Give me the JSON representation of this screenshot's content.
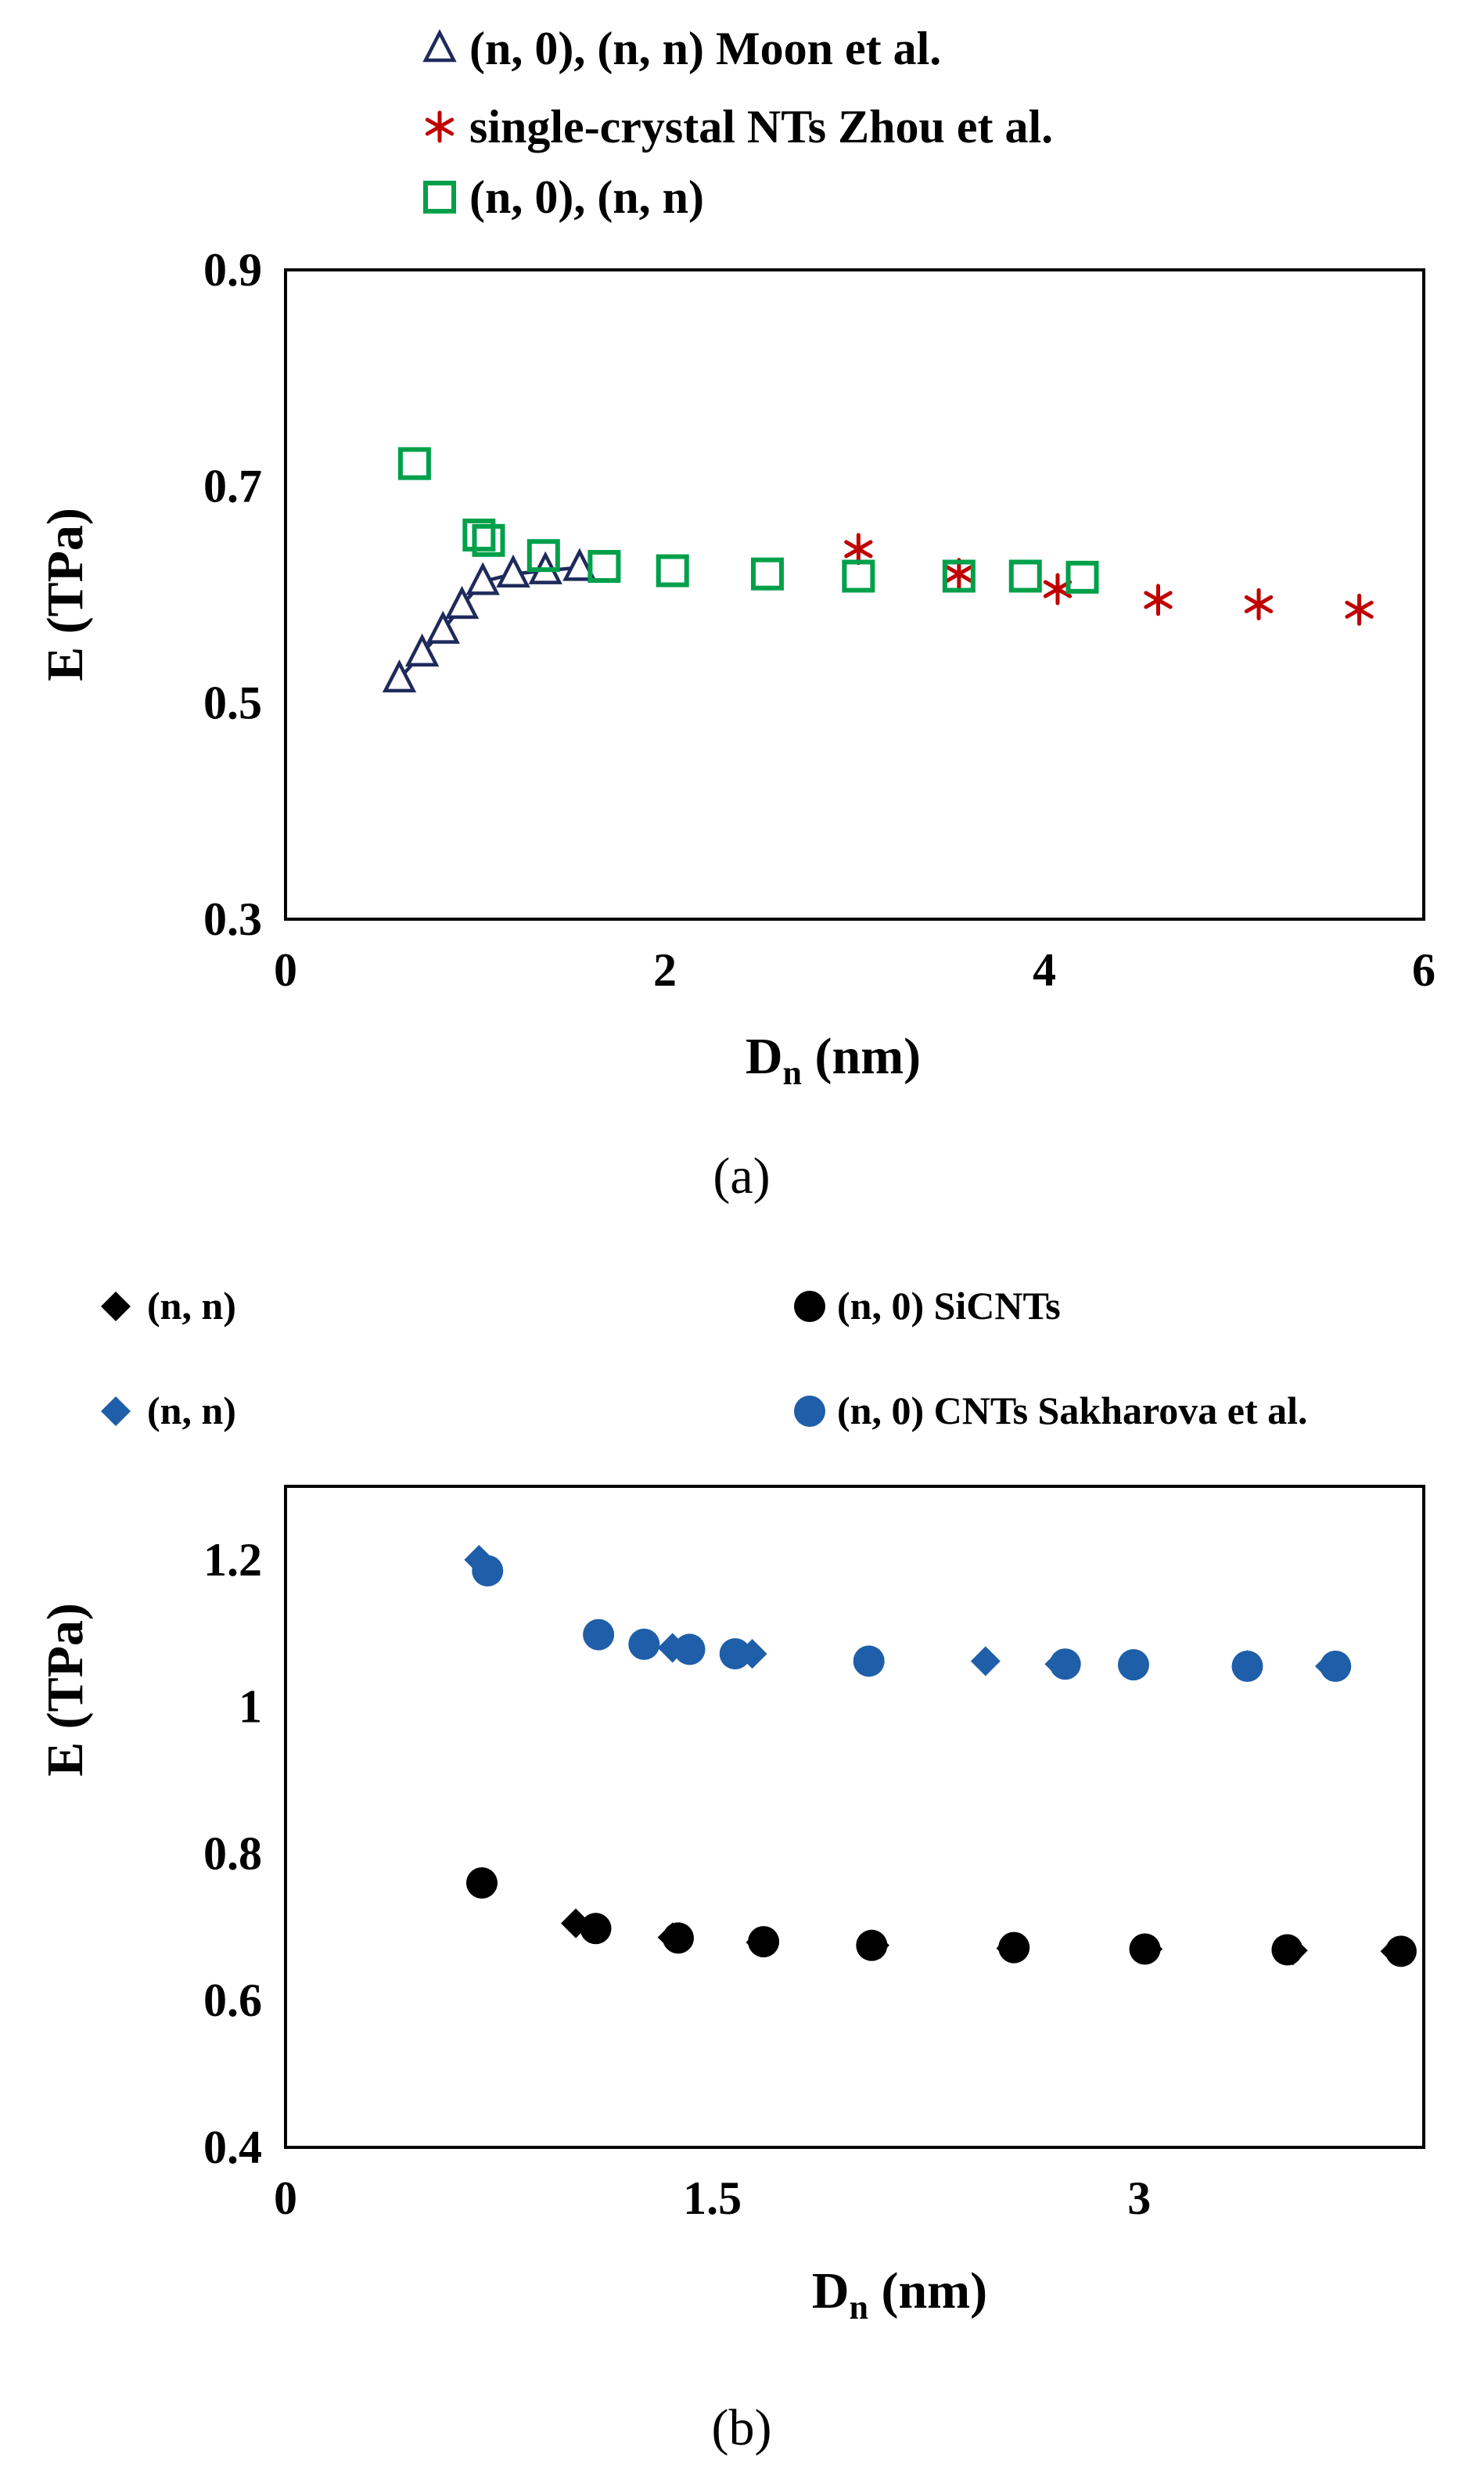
{
  "chart_data": [
    {
      "panel_label": "(a)",
      "type": "scatter",
      "xlabel": "D",
      "xlabel_subscript": "n",
      "xlabel_unit": " (nm)",
      "ylabel": "E (TPa)",
      "xlim": [
        0,
        6
      ],
      "ylim": [
        0.3,
        0.9
      ],
      "xticks": [
        "0",
        "2",
        "4",
        "6"
      ],
      "yticks": [
        "0.9",
        "0.7",
        "0.5",
        "0.3"
      ],
      "grid": false,
      "legend_position": "top",
      "series": [
        {
          "name": "(n, 0), (n, n) Moon et al.",
          "marker": "triangle-open",
          "color": "#1f2a5c",
          "connected": true,
          "x": [
            0.6,
            0.72,
            0.83,
            0.93,
            1.04,
            1.2,
            1.37,
            1.55
          ],
          "y": [
            0.522,
            0.546,
            0.567,
            0.59,
            0.612,
            0.619,
            0.622,
            0.625
          ]
        },
        {
          "name": "single-crystal NTs Zhou et al.",
          "marker": "asterisk",
          "color": "#c00000",
          "x": [
            3.02,
            3.55,
            4.07,
            4.6,
            5.13,
            5.66
          ],
          "y": [
            0.642,
            0.619,
            0.605,
            0.595,
            0.591,
            0.586
          ]
        },
        {
          "name": "(n, 0), (n, n)",
          "marker": "square-open",
          "color": "#00a04a",
          "x": [
            0.68,
            1.02,
            1.07,
            1.36,
            1.68,
            2.04,
            2.54,
            3.02,
            3.55,
            3.9,
            4.2
          ],
          "y": [
            0.721,
            0.655,
            0.65,
            0.636,
            0.626,
            0.622,
            0.619,
            0.617,
            0.617,
            0.617,
            0.616
          ]
        }
      ]
    },
    {
      "panel_label": "(b)",
      "type": "scatter",
      "xlabel": "D",
      "xlabel_subscript": "n",
      "xlabel_unit": " (nm)",
      "ylabel": "E (TPa)",
      "xlim": [
        0,
        4
      ],
      "ylim": [
        0.4,
        1.3
      ],
      "xticks": [
        "0",
        "1.5",
        "3"
      ],
      "xtick_values": [
        0,
        1.5,
        3
      ],
      "yticks": [
        "1.2",
        "1",
        "0.8",
        "0.6",
        "0.4"
      ],
      "ytick_values": [
        1.2,
        1.0,
        0.8,
        0.6,
        0.4
      ],
      "grid": false,
      "legend_position": "top",
      "series": [
        {
          "name": "(n, n)",
          "marker": "diamond",
          "color": "#000000",
          "x": [
            1.02,
            1.36,
            1.67,
            2.07,
            2.55,
            3.03,
            3.54,
            3.9
          ],
          "y": [
            0.705,
            0.686,
            0.679,
            0.675,
            0.671,
            0.67,
            0.668,
            0.667
          ]
        },
        {
          "name": "(n, 0) SiCNTs",
          "marker": "circle",
          "color": "#000000",
          "x": [
            0.69,
            1.09,
            1.38,
            1.68,
            2.06,
            2.56,
            3.02,
            3.52,
            3.92
          ],
          "y": [
            0.76,
            0.698,
            0.685,
            0.68,
            0.675,
            0.672,
            0.67,
            0.669,
            0.667
          ]
        },
        {
          "name": "(n, n)",
          "marker": "diamond",
          "color": "#1f5ea8",
          "x": [
            0.68,
            1.36,
            1.64,
            2.46,
            2.72,
            3.38,
            3.67
          ],
          "y": [
            1.2,
            1.08,
            1.072,
            1.062,
            1.058,
            1.057,
            1.055
          ]
        },
        {
          "name": "(n, 0) CNTs Sakharova et al.",
          "marker": "circle",
          "color": "#1f5ea8",
          "x": [
            0.71,
            1.1,
            1.26,
            1.42,
            1.58,
            2.05,
            2.74,
            2.98,
            3.38,
            3.69
          ],
          "y": [
            1.185,
            1.098,
            1.085,
            1.078,
            1.072,
            1.062,
            1.058,
            1.057,
            1.055,
            1.055
          ]
        }
      ]
    }
  ]
}
